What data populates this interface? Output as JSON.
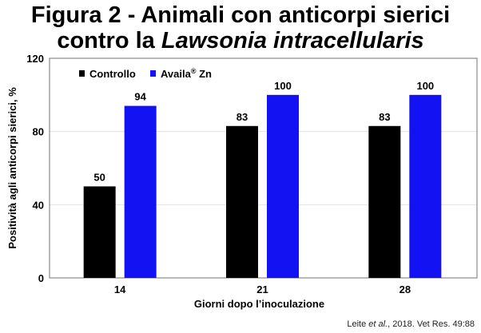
{
  "chart_data": {
    "type": "bar",
    "title_line1": "Figura 2 - Animali con anticorpi sierici",
    "title_line2_prefix": "contro la ",
    "title_line2_italic": "Lawsonia intracellularis",
    "xlabel": "Giorni dopo l’inoculazione",
    "ylabel": "Positività agli anticorpi sierici, %",
    "categories": [
      "14",
      "21",
      "28"
    ],
    "ylim": [
      0,
      120
    ],
    "yticks": [
      0,
      40,
      80,
      120
    ],
    "grid": true,
    "legend_position": "top-left",
    "series": [
      {
        "name": "Controllo",
        "name_sup": "",
        "name_suffix": "",
        "color": "#000000",
        "values": [
          50,
          83,
          83
        ]
      },
      {
        "name": "Availa",
        "name_sup": "®",
        "name_suffix": " Zn",
        "color": "#1212f2",
        "values": [
          94,
          100,
          100
        ]
      }
    ]
  },
  "source": {
    "author": "Leite ",
    "etal": "et al.",
    "rest": ", 2018. Vet Res. 49:88"
  }
}
